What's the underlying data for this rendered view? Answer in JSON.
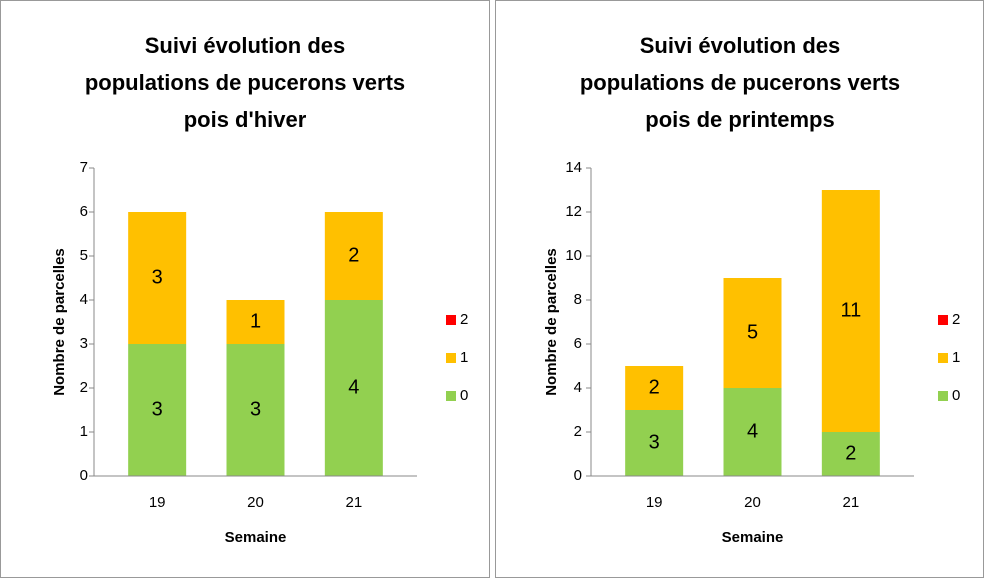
{
  "chart_data": [
    {
      "type": "bar",
      "stacked": true,
      "title": [
        "Suivi évolution des",
        "populations de pucerons verts",
        "pois d'hiver"
      ],
      "x_label": "Semaine",
      "y_label": "Nombre de parcelles",
      "categories": [
        "19",
        "20",
        "21"
      ],
      "series": [
        {
          "name": "0",
          "color": "#92d050",
          "values": [
            3,
            3,
            4
          ]
        },
        {
          "name": "1",
          "color": "#ffc000",
          "values": [
            3,
            1,
            2
          ]
        },
        {
          "name": "2",
          "color": "#ff0000",
          "values": [
            null,
            null,
            null
          ]
        }
      ],
      "ylim": [
        0,
        7
      ],
      "yticks": [
        0,
        1,
        2,
        3,
        4,
        5,
        6,
        7
      ],
      "grid": false,
      "legend": "right"
    },
    {
      "type": "bar",
      "stacked": true,
      "title": [
        "Suivi évolution des",
        "populations de pucerons verts",
        "pois de printemps"
      ],
      "x_label": "Semaine",
      "y_label": "Nombre de parcelles",
      "categories": [
        "19",
        "20",
        "21"
      ],
      "series": [
        {
          "name": "0",
          "color": "#92d050",
          "values": [
            3,
            4,
            2
          ]
        },
        {
          "name": "1",
          "color": "#ffc000",
          "values": [
            2,
            5,
            11
          ]
        },
        {
          "name": "2",
          "color": "#ff0000",
          "values": [
            null,
            null,
            null
          ]
        }
      ],
      "ylim": [
        0,
        14
      ],
      "yticks": [
        0,
        2,
        4,
        6,
        8,
        10,
        12,
        14
      ],
      "grid": false,
      "legend": "right"
    }
  ]
}
